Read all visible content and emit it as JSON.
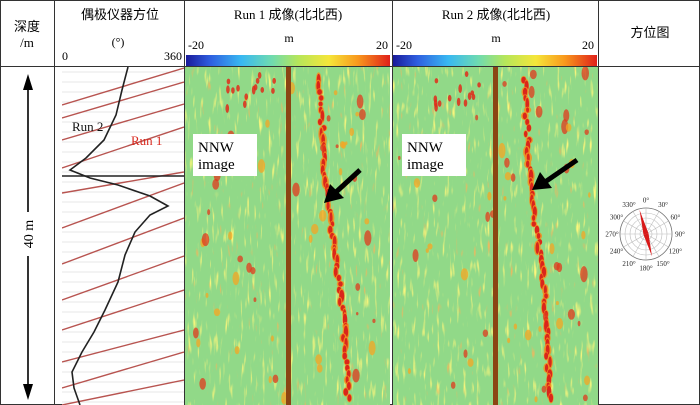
{
  "headers": {
    "depth": [
      "深度",
      "/m"
    ],
    "orientation": "偶极仪器方位",
    "run1": "Run 1 成像(北北西)",
    "run2": "Run 2 成像(北北西)",
    "azimuth": "方位图"
  },
  "scale_labels": {
    "orientation": {
      "min": "0",
      "unit": "(°)",
      "max": "360"
    },
    "run1": {
      "min": "-20",
      "unit": "m",
      "max": "20"
    },
    "run2": {
      "min": "-20",
      "unit": "m",
      "max": "20"
    }
  },
  "depth_label": "40 m",
  "curve_labels": {
    "run2": "Run 2",
    "run1": "Run 1"
  },
  "image_labels": {
    "run1": [
      "NNW",
      "image"
    ],
    "run2": [
      "NNW",
      "image"
    ]
  },
  "rose_labels": [
    "0°",
    "30°",
    "60°",
    "90°",
    "120°",
    "150°",
    "180°",
    "210°",
    "240°",
    "270°",
    "300°",
    "330°"
  ],
  "rose_value_deg": 345,
  "colors": {
    "run1_curve": "#b85450",
    "run2_curve": "#222222",
    "run1_text": "#d9281e",
    "fracture": "#d8191a",
    "borehole": "#8b4513",
    "rose_petal": "#d81818"
  }
}
